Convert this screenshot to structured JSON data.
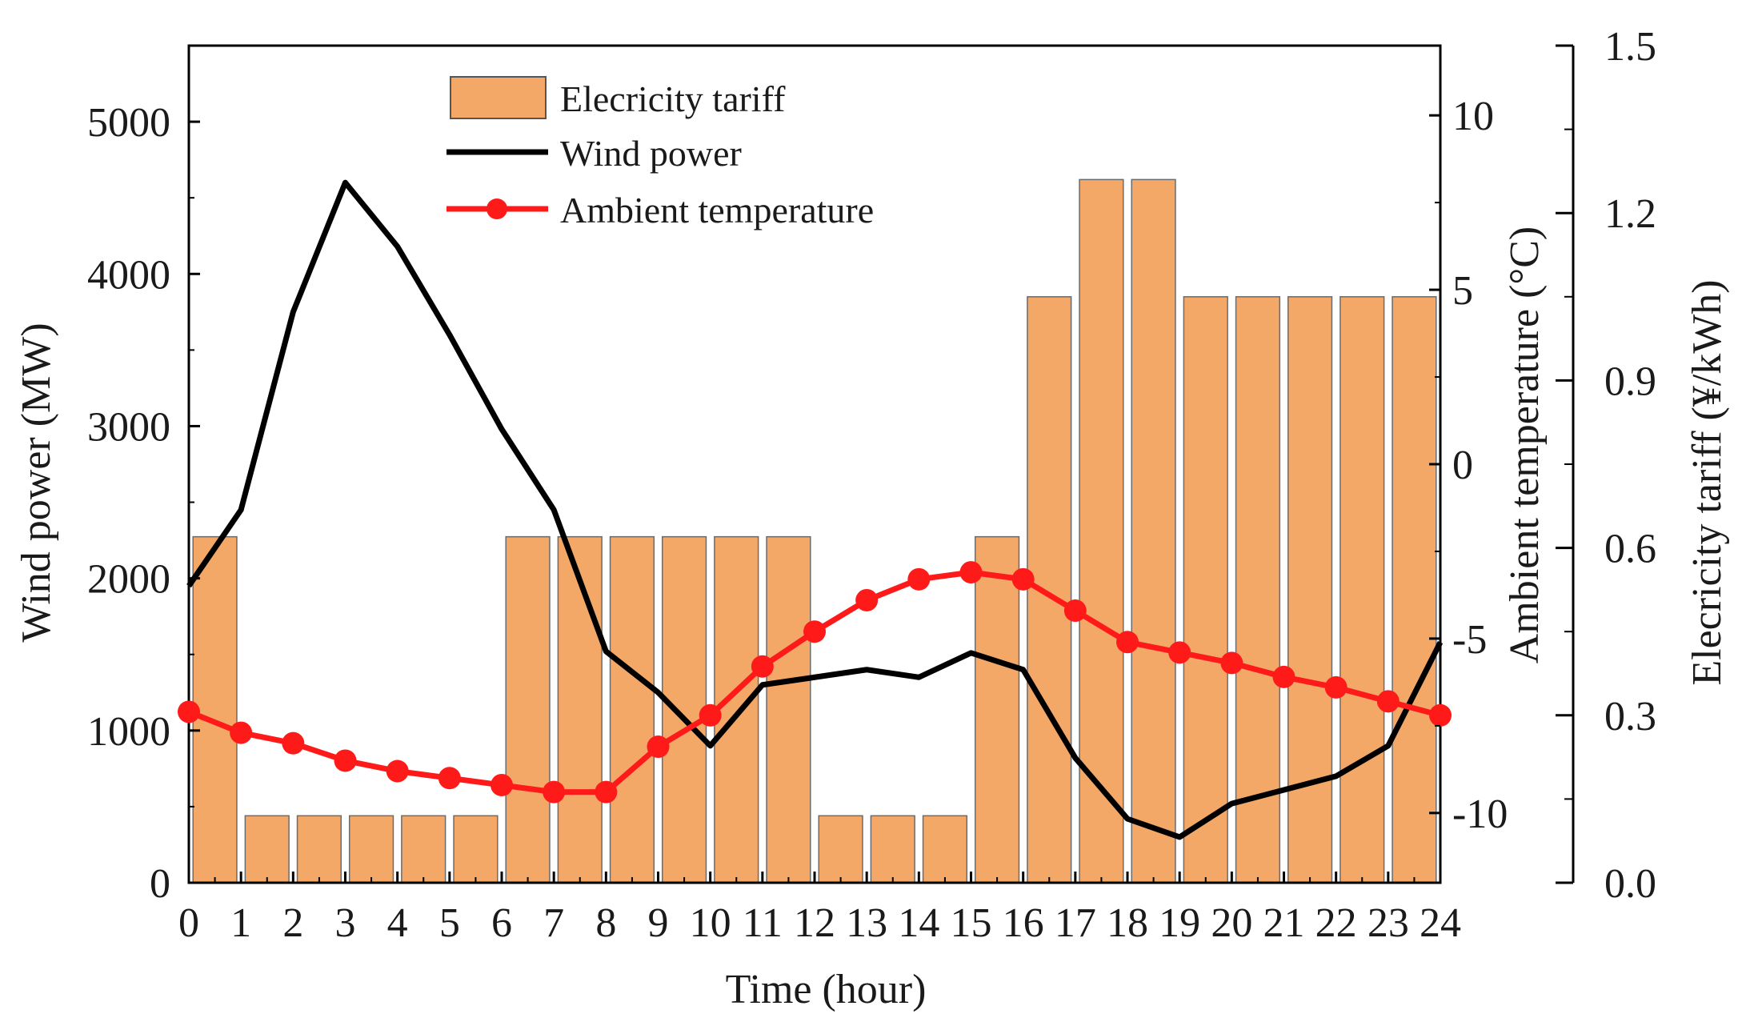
{
  "chart_data": {
    "type": "bar+line",
    "title": "",
    "xlabel": "Time (hour)",
    "x_ticks": [
      0,
      1,
      2,
      3,
      4,
      5,
      6,
      7,
      8,
      9,
      10,
      11,
      12,
      13,
      14,
      15,
      16,
      17,
      18,
      19,
      20,
      21,
      22,
      23,
      24
    ],
    "xlim": [
      0,
      24
    ],
    "axes": {
      "left": {
        "label": "Wind power (MW)",
        "lim": [
          0,
          5500
        ],
        "ticks": [
          0,
          1000,
          2000,
          3000,
          4000,
          5000
        ]
      },
      "right_inner": {
        "label": "Ambient temperature (°C)",
        "lim": [
          -12,
          12
        ],
        "ticks": [
          -10,
          -5,
          0,
          5,
          10
        ]
      },
      "right_outer": {
        "label": "Elecricity tariff (¥/kWh)",
        "lim": [
          0,
          1.5
        ],
        "ticks": [
          "0.0",
          "0.3",
          "0.6",
          "0.9",
          "1.2",
          "1.5"
        ]
      }
    },
    "legend": {
      "placement": "top-left",
      "entries": [
        "Elecricity tariff",
        "Wind power",
        "Ambient temperature"
      ]
    },
    "series": [
      {
        "name": "Elecricity tariff",
        "type": "bar",
        "axis": "right_outer",
        "color": "#f4a868",
        "hours": [
          0,
          1,
          2,
          3,
          4,
          5,
          6,
          7,
          8,
          9,
          10,
          11,
          12,
          13,
          14,
          15,
          16,
          17,
          18,
          19,
          20,
          21,
          22,
          23
        ],
        "values": [
          0.62,
          0.12,
          0.12,
          0.12,
          0.12,
          0.12,
          0.62,
          0.62,
          0.62,
          0.62,
          0.62,
          0.62,
          0.12,
          0.12,
          0.12,
          0.62,
          1.05,
          1.26,
          1.26,
          1.05,
          1.05,
          1.05,
          1.05,
          1.05
        ]
      },
      {
        "name": "Wind power",
        "type": "line",
        "axis": "left",
        "color": "#000000",
        "x": [
          0,
          1,
          2,
          3,
          4,
          5,
          6,
          7,
          8,
          9,
          10,
          11,
          12,
          13,
          14,
          15,
          16,
          17,
          18,
          19,
          20,
          21,
          22,
          23,
          24
        ],
        "values": [
          1950,
          2450,
          3750,
          4600,
          4180,
          3600,
          2980,
          2450,
          1520,
          1250,
          900,
          1300,
          1350,
          1400,
          1350,
          1510,
          1400,
          820,
          420,
          300,
          520,
          610,
          700,
          900,
          1580
        ]
      },
      {
        "name": "Ambient temperature",
        "type": "line",
        "axis": "right_inner",
        "color": "#ff1a1a",
        "marker": "circle",
        "x": [
          0,
          1,
          2,
          3,
          4,
          5,
          6,
          7,
          8,
          9,
          10,
          11,
          12,
          13,
          14,
          15,
          16,
          17,
          18,
          19,
          20,
          21,
          22,
          23,
          24
        ],
        "values": [
          -7.1,
          -7.7,
          -8.0,
          -8.5,
          -8.8,
          -9.0,
          -9.2,
          -9.4,
          -9.4,
          -8.1,
          -7.2,
          -5.8,
          -4.8,
          -3.9,
          -3.3,
          -3.1,
          -3.3,
          -4.2,
          -5.1,
          -5.4,
          -5.7,
          -6.1,
          -6.4,
          -6.8,
          -7.2
        ]
      }
    ]
  }
}
